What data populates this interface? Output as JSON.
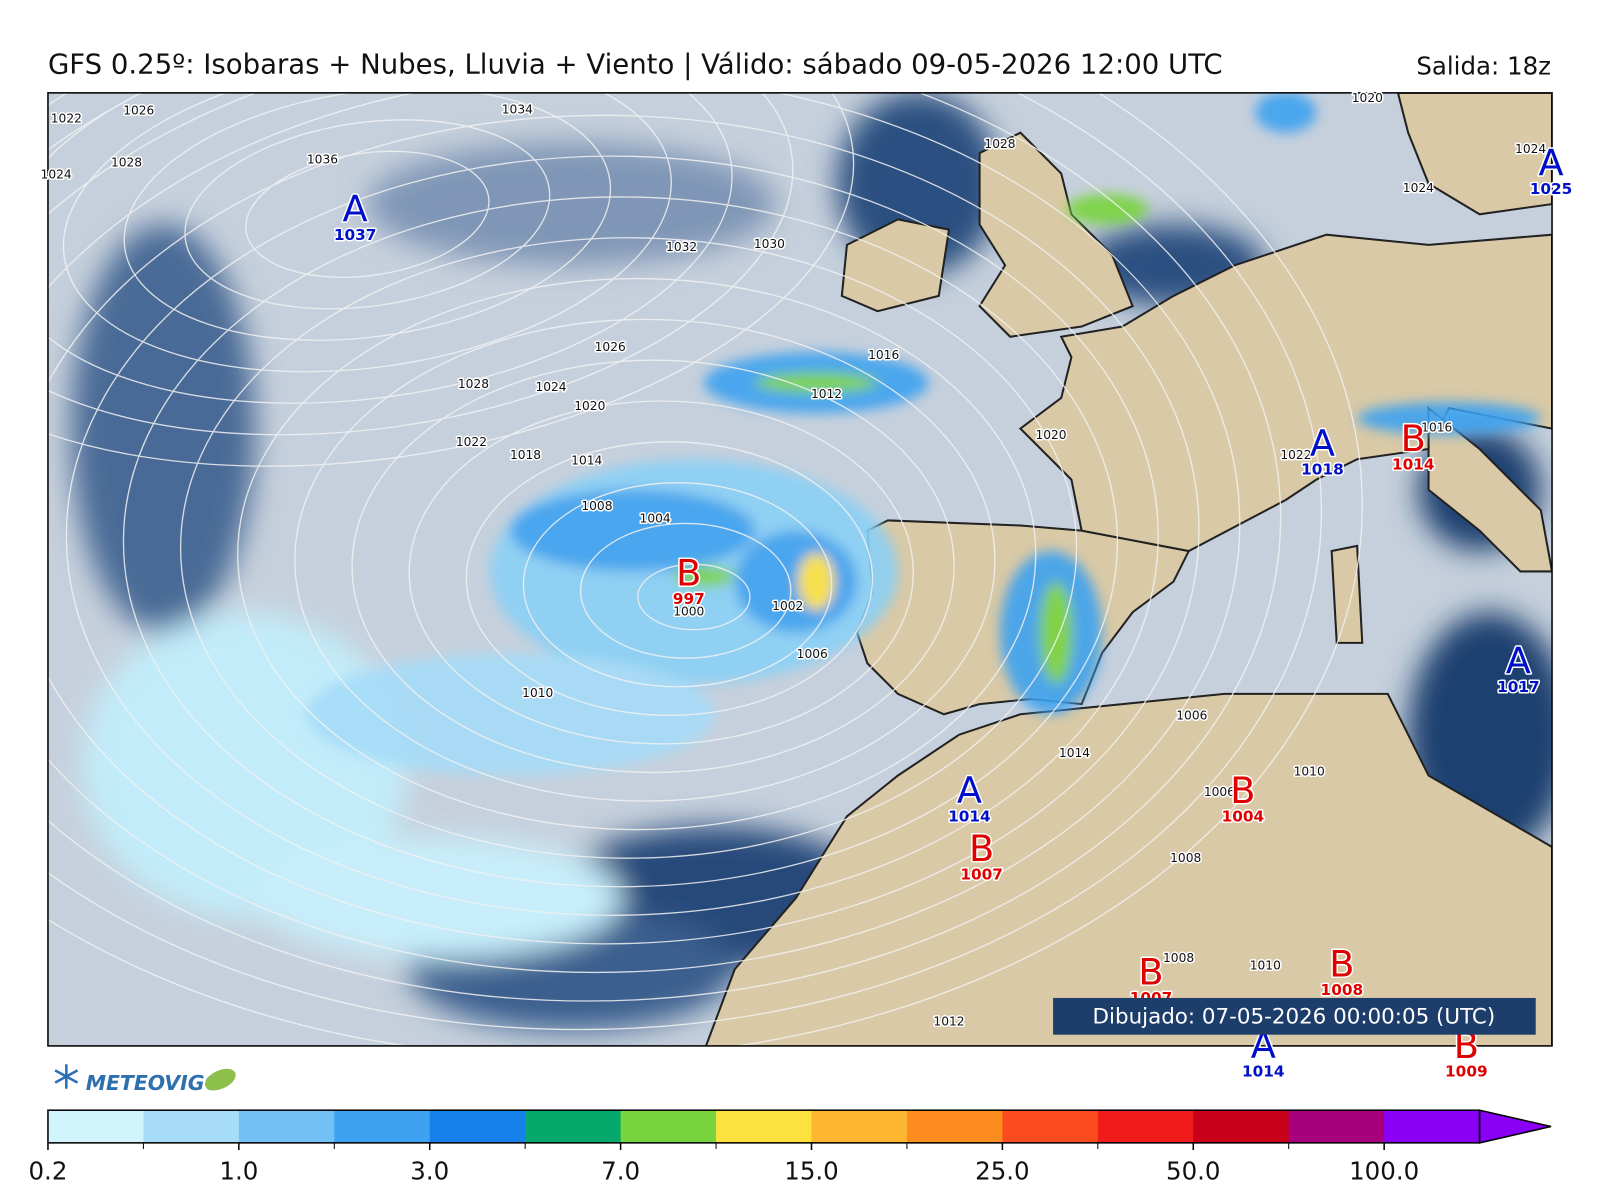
{
  "header": {
    "title": "GFS 0.25º: Isobaras + Nubes, Lluvia + Viento | Válido: sábado 09-05-2026 12:00 UTC",
    "run": "Salida: 18z"
  },
  "pressure_centers": [
    {
      "letter": "A",
      "value": 1037
    },
    {
      "letter": "B",
      "value": 997
    },
    {
      "letter": "A",
      "value": 1018
    },
    {
      "letter": "B",
      "value": 1014
    },
    {
      "letter": "A",
      "value": 1025
    },
    {
      "letter": "A",
      "value": 1017
    },
    {
      "letter": "A",
      "value": 1014
    },
    {
      "letter": "B",
      "value": 1004
    },
    {
      "letter": "B",
      "value": 1007
    },
    {
      "letter": "B",
      "value": 1007
    },
    {
      "letter": "B",
      "value": 1008
    },
    {
      "letter": "A",
      "value": 1014
    },
    {
      "letter": "B",
      "value": 1009
    }
  ],
  "center_colors": {
    "A": "#0010c8",
    "B": "#e00000"
  },
  "isobar_labels": [
    1022,
    1026,
    1024,
    1028,
    1034,
    1036,
    1032,
    1030,
    1026,
    1028,
    1024,
    1020,
    1022,
    1018,
    1014,
    1016,
    1012,
    1008,
    1004,
    1000,
    1002,
    1006,
    1010,
    1006,
    1014,
    1006,
    1010,
    1008,
    1008,
    1010,
    1012,
    1020,
    1020,
    1022,
    1024,
    1028,
    1016,
    1024
  ],
  "footer": {
    "drawn": "Dibujado: 07-05-2026 00:00:05 (UTC)",
    "logo": "METEOVIGO"
  },
  "colorbar": {
    "colors": [
      "#d2f4fc",
      "#a6dcf8",
      "#72c0f6",
      "#3ea2f0",
      "#1680ea",
      "#06a86c",
      "#78d43c",
      "#fde23e",
      "#fcb630",
      "#fc8c1e",
      "#fa4c1e",
      "#f01c1c",
      "#c8001a",
      "#a8007c",
      "#8a00f6"
    ],
    "ticks": [
      0.2,
      {
        "value": 1,
        "label": "1.0"
      },
      {
        "value": 3,
        "label": "3.0"
      },
      {
        "value": 7,
        "label": "7.0"
      },
      {
        "value": 15,
        "label": "15.0"
      },
      {
        "value": 25,
        "label": "25.0"
      },
      {
        "value": 50,
        "label": "50.0"
      },
      {
        "value": 100,
        "label": "100.0"
      }
    ]
  }
}
